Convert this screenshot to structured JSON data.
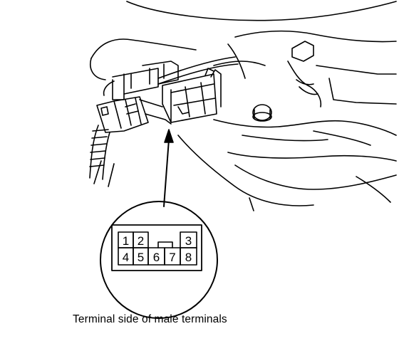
{
  "caption": "Terminal side of male terminals",
  "connector": {
    "top_row": [
      "1",
      "2",
      "3"
    ],
    "bottom_row": [
      "4",
      "5",
      "6",
      "7",
      "8"
    ]
  },
  "colors": {
    "line": "#000000",
    "background": "#ffffff"
  }
}
